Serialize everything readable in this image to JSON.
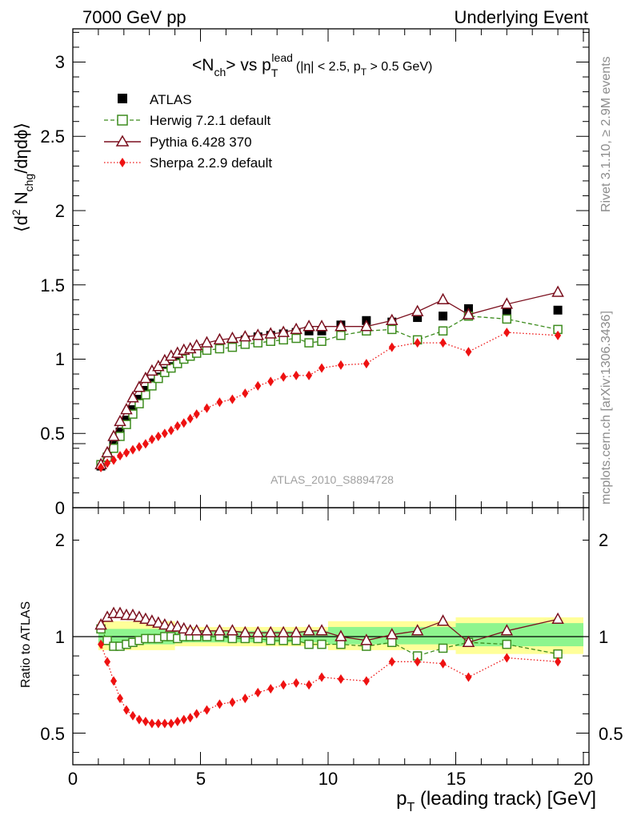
{
  "header": {
    "left": "7000 GeV pp",
    "right": "Underlying Event"
  },
  "main": {
    "title": {
      "a": "<N",
      "a_sub": "ch",
      "b": "> vs p",
      "b_sub": "T",
      "b_sup": "lead",
      "c": "(|η| < 2.5, p",
      "c_sub": "T",
      "d": " > 0.5 GeV)"
    },
    "ylabel": {
      "a": "⟨d",
      "a_sup": "2",
      "b": " N",
      "b_sub": "chg",
      "c": "/dηdϕ⟩"
    },
    "watermark": "ATLAS_2010_S8894728",
    "yticks": [
      "3",
      "2.5",
      "2",
      "1.5",
      "1",
      "0.5",
      "0"
    ]
  },
  "ratio": {
    "ylabel": "Ratio to ATLAS",
    "yticks_left": [
      "2",
      "1",
      "0.5"
    ],
    "yticks_right": [
      "2",
      "1",
      "0.5"
    ]
  },
  "xaxis": {
    "label": {
      "a": "p",
      "a_sub": "T",
      "b": " (leading track) [GeV]"
    },
    "ticks": [
      "0",
      "5",
      "10",
      "15",
      "20"
    ]
  },
  "side": {
    "rivet": "Rivet 3.1.10, ≥ 2.9M events",
    "mcplots": "mcplots.cern.ch [arXiv:1306.3436]"
  },
  "legend": {
    "atlas": "ATLAS",
    "herwig": "Herwig 7.2.1 default",
    "pythia": "Pythia 6.428 370",
    "sherpa": "Sherpa 2.2.9 default"
  },
  "colors": {
    "atlas": "#000000",
    "herwig": "#3d8c1e",
    "pythia": "#7b0f1e",
    "sherpa": "#ee1111",
    "band_inner": "#8ef58e",
    "band_outer": "#ffff99"
  },
  "chart_data": [
    {
      "type": "scatter",
      "title": "<Nch> vs pT lead (|η| < 2.5, pT > 0.5 GeV)",
      "xlabel": "pT (leading track) [GeV]",
      "ylabel": "⟨d2 Nchg/dηdϕ⟩",
      "xlim": [
        0,
        20.2
      ],
      "ylim": [
        0,
        3.2
      ],
      "x": [
        1.1,
        1.35,
        1.6,
        1.85,
        2.1,
        2.35,
        2.6,
        2.85,
        3.1,
        3.35,
        3.6,
        3.85,
        4.1,
        4.35,
        4.6,
        4.85,
        5.25,
        5.75,
        6.25,
        6.75,
        7.25,
        7.75,
        8.25,
        8.75,
        9.25,
        9.75,
        10.5,
        11.5,
        12.5,
        13.5,
        14.5,
        15.5,
        17.0,
        19.0
      ],
      "series": [
        {
          "name": "ATLAS",
          "values": [
            0.28,
            0.34,
            0.42,
            0.51,
            0.59,
            0.66,
            0.73,
            0.79,
            0.84,
            0.88,
            0.92,
            0.95,
            0.98,
            1.01,
            1.03,
            1.05,
            1.07,
            1.09,
            1.11,
            1.13,
            1.15,
            1.16,
            1.17,
            1.18,
            1.19,
            1.19,
            1.23,
            1.26,
            1.25,
            1.28,
            1.29,
            1.34,
            1.33,
            1.33
          ]
        },
        {
          "name": "Herwig 7.2.1 default",
          "values": [
            0.29,
            0.34,
            0.4,
            0.48,
            0.56,
            0.63,
            0.7,
            0.76,
            0.82,
            0.87,
            0.91,
            0.94,
            0.97,
            1.0,
            1.02,
            1.04,
            1.06,
            1.07,
            1.08,
            1.1,
            1.11,
            1.12,
            1.13,
            1.14,
            1.11,
            1.12,
            1.16,
            1.19,
            1.2,
            1.13,
            1.19,
            1.29,
            1.27,
            1.2
          ]
        },
        {
          "name": "Pythia 6.428 370",
          "values": [
            0.29,
            0.37,
            0.48,
            0.58,
            0.66,
            0.74,
            0.81,
            0.87,
            0.92,
            0.95,
            0.99,
            1.02,
            1.04,
            1.06,
            1.07,
            1.09,
            1.11,
            1.13,
            1.14,
            1.15,
            1.16,
            1.17,
            1.18,
            1.2,
            1.22,
            1.22,
            1.22,
            1.22,
            1.26,
            1.32,
            1.4,
            1.3,
            1.37,
            1.45
          ]
        },
        {
          "name": "Sherpa 2.2.9 default",
          "values": [
            0.27,
            0.3,
            0.32,
            0.35,
            0.37,
            0.39,
            0.41,
            0.43,
            0.46,
            0.48,
            0.5,
            0.52,
            0.55,
            0.57,
            0.6,
            0.63,
            0.67,
            0.71,
            0.73,
            0.77,
            0.82,
            0.85,
            0.88,
            0.89,
            0.89,
            0.94,
            0.96,
            0.97,
            1.08,
            1.11,
            1.11,
            1.05,
            1.18,
            1.16
          ]
        }
      ],
      "legend": "top-left"
    },
    {
      "type": "line",
      "ylabel": "Ratio to ATLAS",
      "xlabel": "pT (leading track) [GeV]",
      "xlim": [
        0,
        20.2
      ],
      "ylim": [
        0.35,
        2.3
      ],
      "x": [
        1.1,
        1.35,
        1.6,
        1.85,
        2.1,
        2.35,
        2.6,
        2.85,
        3.1,
        3.35,
        3.6,
        3.85,
        4.1,
        4.35,
        4.6,
        4.85,
        5.25,
        5.75,
        6.25,
        6.75,
        7.25,
        7.75,
        8.25,
        8.75,
        9.25,
        9.75,
        10.5,
        11.5,
        12.5,
        13.5,
        14.5,
        15.5,
        17.0,
        19.0
      ],
      "series": [
        {
          "name": "Herwig 7.2.1 default",
          "values": [
            1.04,
            0.98,
            0.95,
            0.95,
            0.96,
            0.97,
            0.98,
            0.99,
            0.99,
            0.99,
            1.0,
            1.0,
            0.99,
            1.0,
            1.0,
            1.0,
            1.0,
            1.0,
            0.99,
            0.99,
            0.99,
            0.98,
            0.98,
            0.98,
            0.96,
            0.96,
            0.96,
            0.95,
            0.97,
            0.9,
            0.94,
            0.97,
            0.96,
            0.91
          ]
        },
        {
          "name": "Pythia 6.428 370",
          "values": [
            1.06,
            1.1,
            1.12,
            1.12,
            1.11,
            1.11,
            1.1,
            1.09,
            1.08,
            1.07,
            1.06,
            1.05,
            1.05,
            1.04,
            1.03,
            1.03,
            1.03,
            1.03,
            1.03,
            1.02,
            1.02,
            1.02,
            1.02,
            1.02,
            1.03,
            1.03,
            1.0,
            0.98,
            1.01,
            1.03,
            1.08,
            0.97,
            1.03,
            1.09
          ]
        },
        {
          "name": "Sherpa 2.2.9 default",
          "values": [
            0.96,
            0.87,
            0.77,
            0.68,
            0.62,
            0.59,
            0.57,
            0.56,
            0.55,
            0.55,
            0.55,
            0.55,
            0.56,
            0.57,
            0.58,
            0.6,
            0.62,
            0.65,
            0.66,
            0.68,
            0.71,
            0.73,
            0.75,
            0.76,
            0.75,
            0.79,
            0.78,
            0.77,
            0.87,
            0.87,
            0.86,
            0.79,
            0.89,
            0.87
          ]
        }
      ],
      "bands": {
        "x_edges": [
          1.0,
          4.0,
          10.0,
          15.0,
          20.0
        ],
        "inner": [
          [
            0.96,
            1.04
          ],
          [
            0.97,
            1.03
          ],
          [
            0.96,
            1.05
          ],
          [
            0.95,
            1.07
          ],
          [
            0.93,
            1.09
          ]
        ],
        "outer": [
          [
            0.93,
            1.08
          ],
          [
            0.95,
            1.05
          ],
          [
            0.93,
            1.08
          ],
          [
            0.91,
            1.1
          ],
          [
            0.89,
            1.12
          ]
        ]
      }
    }
  ]
}
